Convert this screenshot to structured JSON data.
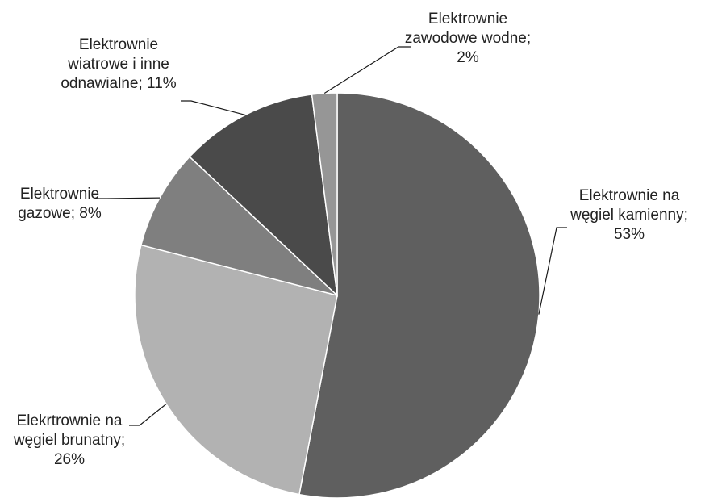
{
  "chart_data": {
    "type": "pie",
    "start_angle_deg": 0,
    "direction": "clockwise",
    "slices": [
      {
        "lines": [
          "Elektrownie na",
          "węgiel kamienny;",
          "53%"
        ],
        "value": 53,
        "color": "#5f5f5f"
      },
      {
        "lines": [
          "Elekrtrownie na",
          "węgiel brunatny;",
          "26%"
        ],
        "value": 26,
        "color": "#b2b2b2"
      },
      {
        "lines": [
          "Elektrownie",
          "gazowe; 8%"
        ],
        "value": 8,
        "color": "#7f7f7f"
      },
      {
        "lines": [
          "Elektrownie",
          "wiatrowe i inne",
          "odnawialne; 11%"
        ],
        "value": 11,
        "color": "#4a4a4a"
      },
      {
        "lines": [
          "Elektrownie",
          "zawodowe wodne;",
          "2%"
        ],
        "value": 2,
        "color": "#969696"
      }
    ]
  }
}
